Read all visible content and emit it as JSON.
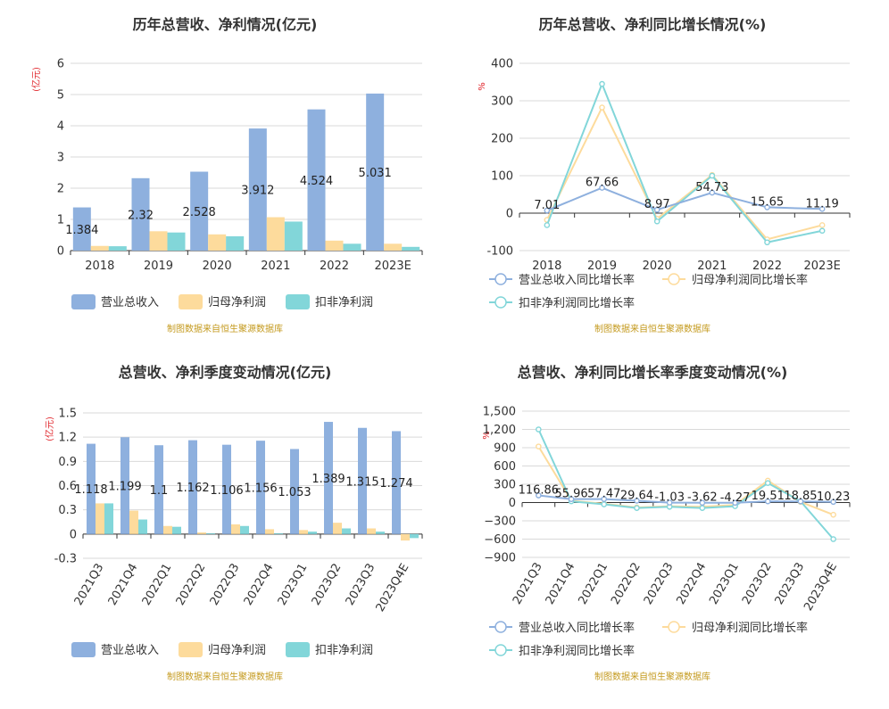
{
  "colors": {
    "revenue": "#8eb0de",
    "net_profit": "#fddb9c",
    "deducted_profit": "#82d6d9",
    "revenue_line": "#8eb0de",
    "net_line": "#fddb9c",
    "deducted_line": "#82d6d9",
    "axis": "#333333",
    "grid": "#d9d9d9",
    "unit": "#e0242a",
    "source": "#c49a1e"
  },
  "chart_data": [
    {
      "type": "bar",
      "title": "历年总营收、净利情况(亿元)",
      "unit_label": "(亿元)",
      "source": "制图数据来自恒生聚源数据库",
      "categories": [
        "2018",
        "2019",
        "2020",
        "2021",
        "2022",
        "2023E"
      ],
      "ylim": [
        0,
        6
      ],
      "yticks": [
        0,
        1,
        2,
        3,
        4,
        5,
        6
      ],
      "grid": true,
      "legend_position": "bottom",
      "series": [
        {
          "name": "营业总收入",
          "values": [
            1.384,
            2.32,
            2.528,
            3.912,
            4.524,
            5.031
          ],
          "labels": [
            "1.384",
            "2.32",
            "2.528",
            "3.912",
            "4.524",
            "5.031"
          ]
        },
        {
          "name": "归母净利润",
          "values": [
            0.15,
            0.62,
            0.52,
            1.07,
            0.32,
            0.22
          ]
        },
        {
          "name": "扣非净利润",
          "values": [
            0.14,
            0.58,
            0.46,
            0.93,
            0.22,
            0.12
          ]
        }
      ]
    },
    {
      "type": "line",
      "title": "历年总营收、净利同比增长情况(%)",
      "unit_label": "%",
      "source": "制图数据来自恒生聚源数据库",
      "categories": [
        "2018",
        "2019",
        "2020",
        "2021",
        "2022",
        "2023E"
      ],
      "ylim": [
        -100,
        400
      ],
      "yticks": [
        -100,
        0,
        100,
        200,
        300,
        400
      ],
      "grid": true,
      "legend_position": "bottom",
      "series": [
        {
          "name": "营业总收入同比增长率",
          "values": [
            7.01,
            67.66,
            8.97,
            54.73,
            15.65,
            11.19
          ],
          "labels": [
            "7.01",
            "67.66",
            "8.97",
            "54.73",
            "15.65",
            "11.19"
          ]
        },
        {
          "name": "归母净利润同比增长率",
          "values": [
            -18,
            282,
            -15,
            102,
            -70,
            -32
          ]
        },
        {
          "name": "扣非净利润同比增长率",
          "values": [
            -32,
            345,
            -22,
            100,
            -78,
            -47
          ]
        }
      ]
    },
    {
      "type": "bar",
      "title": "总营收、净利季度变动情况(亿元)",
      "unit_label": "(亿元)",
      "source": "制图数据来自恒生聚源数据库",
      "categories": [
        "2021Q3",
        "2021Q4",
        "2022Q1",
        "2022Q2",
        "2022Q3",
        "2022Q4",
        "2023Q1",
        "2023Q2",
        "2023Q3",
        "2023Q4E"
      ],
      "ylim": [
        -0.3,
        1.5
      ],
      "yticks": [
        -0.3,
        0,
        0.3,
        0.6,
        0.9,
        1.2,
        1.5
      ],
      "grid": true,
      "legend_position": "bottom",
      "series": [
        {
          "name": "营业总收入",
          "values": [
            1.118,
            1.199,
            1.1,
            1.162,
            1.106,
            1.156,
            1.053,
            1.389,
            1.315,
            1.274
          ],
          "labels": [
            "1.118",
            "1.199",
            "1.1",
            "1.162",
            "1.106",
            "1.156",
            "1.053",
            "1.389",
            "1.315",
            "1.274"
          ]
        },
        {
          "name": "归母净利润",
          "values": [
            0.38,
            0.29,
            0.1,
            0.02,
            0.12,
            0.06,
            0.05,
            0.14,
            0.07,
            -0.08
          ]
        },
        {
          "name": "扣非净利润",
          "values": [
            0.38,
            0.18,
            0.09,
            0.01,
            0.1,
            0.01,
            0.03,
            0.07,
            0.03,
            -0.05
          ]
        }
      ]
    },
    {
      "type": "line",
      "title": "总营收、净利同比增长率季度变动情况(%)",
      "unit_label": "%",
      "source": "制图数据来自恒生聚源数据库",
      "categories": [
        "2021Q3",
        "2021Q4",
        "2022Q1",
        "2022Q2",
        "2022Q3",
        "2022Q4",
        "2023Q1",
        "2023Q2",
        "2023Q3",
        "2023Q4E"
      ],
      "ylim": [
        -900,
        1500
      ],
      "yticks": [
        -900,
        -600,
        -300,
        0,
        300,
        600,
        900,
        1200,
        1500
      ],
      "ytick_labels": [
        "−900",
        "−600",
        "−300",
        "0",
        "300",
        "600",
        "900",
        "1,200",
        "1,500"
      ],
      "grid": true,
      "legend_position": "bottom",
      "series": [
        {
          "name": "营业总收入同比增长率",
          "values": [
            116.86,
            55.96,
            57.47,
            29.64,
            -1.03,
            -3.62,
            -4.27,
            19.51,
            18.85,
            10.23
          ],
          "labels": [
            "116.86",
            "55.96",
            "57.47",
            "29.64",
            "-1.03",
            "-3.62",
            "-4.27",
            "19.51",
            "18.85",
            "10.23"
          ]
        },
        {
          "name": "归母净利润同比增长率",
          "values": [
            920,
            30,
            -20,
            -80,
            -60,
            -70,
            -40,
            360,
            10,
            -200
          ]
        },
        {
          "name": "扣非净利润同比增长率",
          "values": [
            1200,
            20,
            -30,
            -90,
            -70,
            -90,
            -60,
            320,
            20,
            -600
          ]
        }
      ]
    }
  ]
}
